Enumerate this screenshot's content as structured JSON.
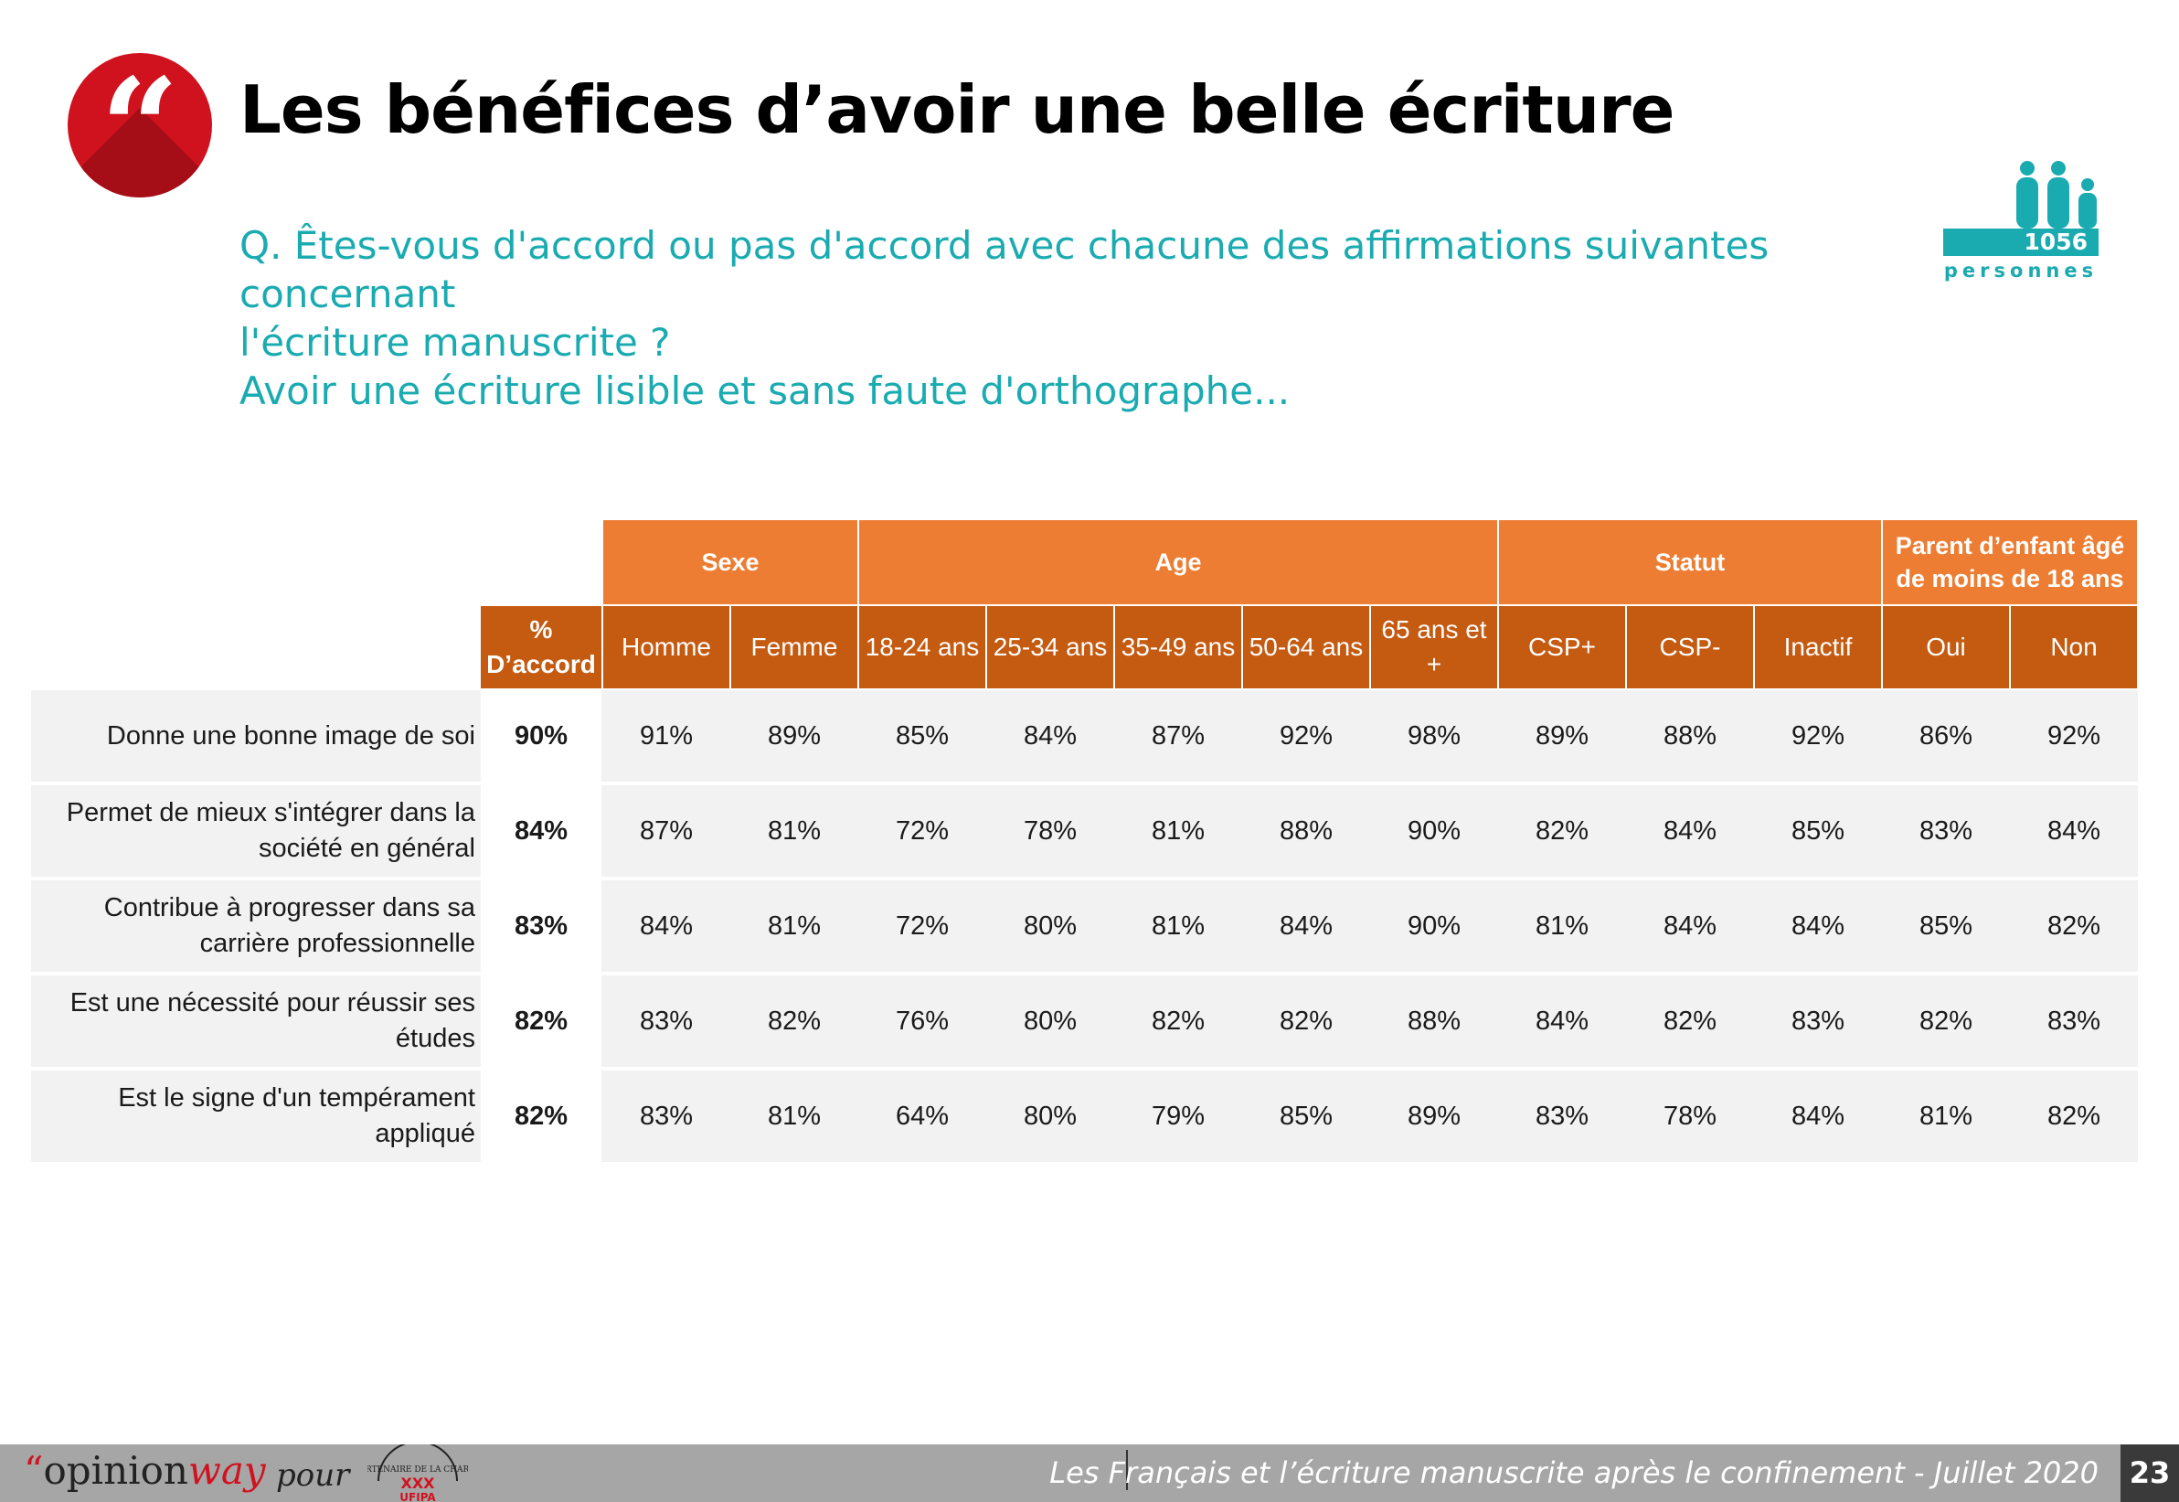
{
  "header": {
    "quote_glyph": "“",
    "title": "Les bénéfices d’avoir une belle écriture",
    "question": [
      "Q. Êtes-vous d'accord ou pas d'accord avec chacune des affirmations suivantes concernant",
      "l'écriture manuscrite ?",
      "Avoir une écriture lisible et sans faute d'orthographe..."
    ],
    "sample_size": "1056",
    "sample_label": "personnes",
    "sample_icon": "people-icon"
  },
  "colors": {
    "accent_red": "#d0121f",
    "teal": "#1aabb1",
    "group_header": "#ec7d32",
    "sub_header": "#c55a11",
    "row_band": "#f2f2f2"
  },
  "chart_data": {
    "type": "table",
    "groups": [
      {
        "label": "Sexe",
        "span": 2
      },
      {
        "label": "Age",
        "span": 5
      },
      {
        "label": "Statut",
        "span": 3
      },
      {
        "label": "Parent d’enfant âgé de moins de 18 ans",
        "span": 2
      }
    ],
    "total_header": "% D’accord",
    "columns": [
      "Homme",
      "Femme",
      "18-24 ans",
      "25-34 ans",
      "35-49 ans",
      "50-64 ans",
      "65 ans et +",
      "CSP+",
      "CSP-",
      "Inactif",
      "Oui",
      "Non"
    ],
    "rows": [
      {
        "label": "Donne une bonne image de soi",
        "total": "90%",
        "values": [
          "91%",
          "89%",
          "85%",
          "84%",
          "87%",
          "92%",
          "98%",
          "89%",
          "88%",
          "92%",
          "86%",
          "92%"
        ]
      },
      {
        "label": "Permet de mieux s'intégrer dans la société en général",
        "total": "84%",
        "values": [
          "87%",
          "81%",
          "72%",
          "78%",
          "81%",
          "88%",
          "90%",
          "82%",
          "84%",
          "85%",
          "83%",
          "84%"
        ]
      },
      {
        "label": "Contribue à progresser dans sa carrière professionnelle",
        "total": "83%",
        "values": [
          "84%",
          "81%",
          "72%",
          "80%",
          "81%",
          "84%",
          "90%",
          "81%",
          "84%",
          "84%",
          "85%",
          "82%"
        ]
      },
      {
        "label": "Est une nécessité pour réussir ses études",
        "total": "82%",
        "values": [
          "83%",
          "82%",
          "76%",
          "80%",
          "82%",
          "82%",
          "88%",
          "84%",
          "82%",
          "83%",
          "82%",
          "83%"
        ]
      },
      {
        "label": "Est le signe d'un tempérament appliqué",
        "total": "82%",
        "values": [
          "83%",
          "81%",
          "64%",
          "80%",
          "79%",
          "85%",
          "89%",
          "83%",
          "78%",
          "84%",
          "81%",
          "82%"
        ]
      }
    ]
  },
  "footer": {
    "brand_quote": "“",
    "brand_opinion": "opinion",
    "brand_way": "way",
    "pour": "pour",
    "partner_logo_text": "PARTENAIRE DE LA CHARTE UFIPA",
    "caption": "Les Français et l’écriture manuscrite après le confinement - Juillet 2020",
    "page_number": "23"
  }
}
